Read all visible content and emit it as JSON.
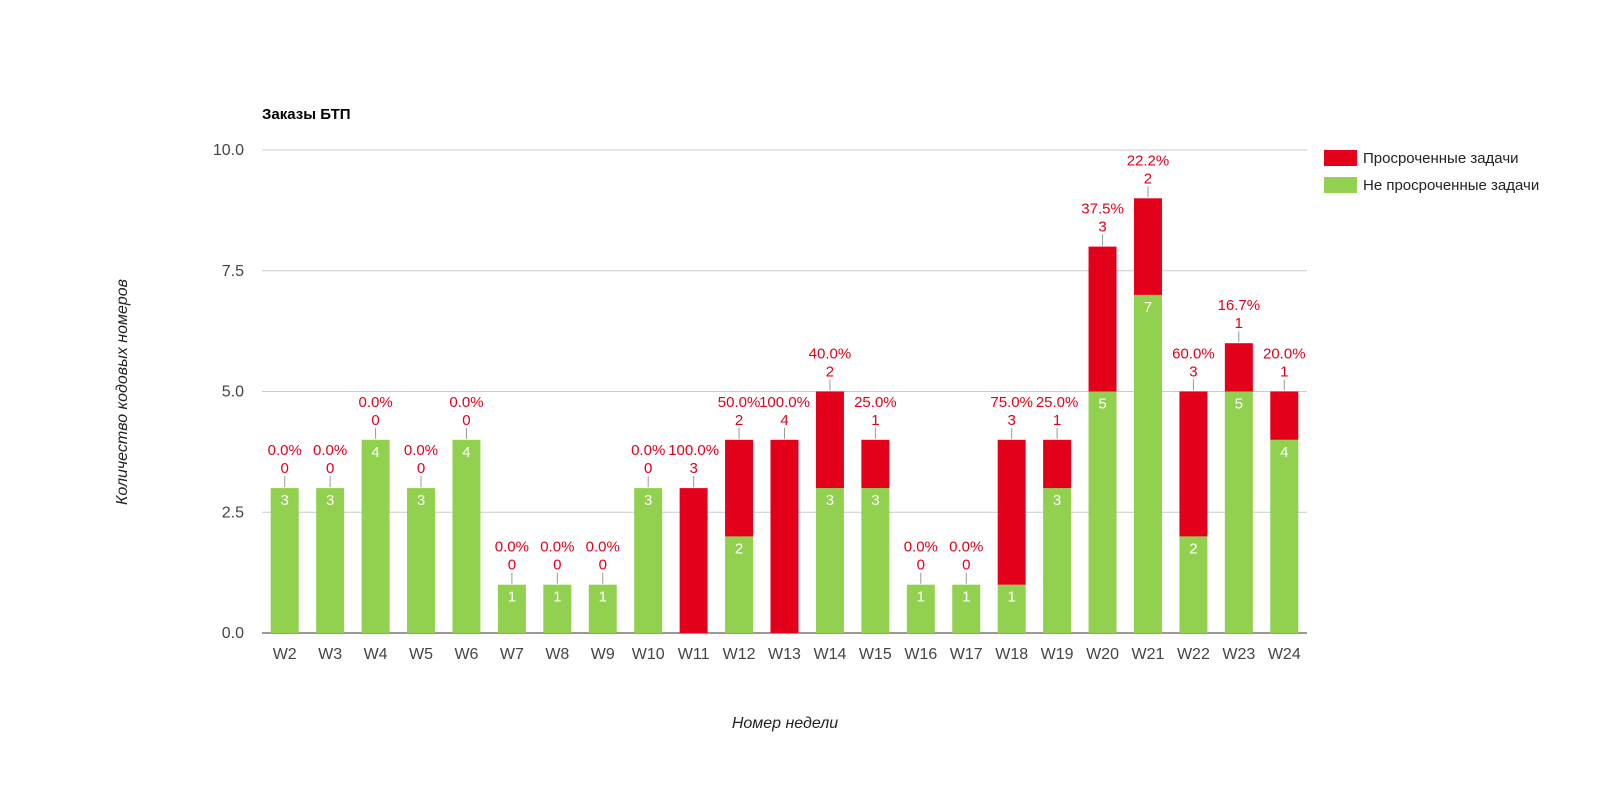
{
  "chart_data": {
    "type": "bar",
    "stacked": true,
    "title": "Заказы БТП",
    "xlabel": "Номер недели",
    "ylabel": "Количество кодовых номеров",
    "ylim": [
      0,
      10
    ],
    "yticks": [
      "0.0",
      "2.5",
      "5.0",
      "7.5",
      "10.0"
    ],
    "grid": true,
    "legend_position": "right",
    "categories": [
      "W2",
      "W3",
      "W4",
      "W5",
      "W6",
      "W7",
      "W8",
      "W9",
      "W10",
      "W11",
      "W12",
      "W13",
      "W14",
      "W15",
      "W16",
      "W17",
      "W18",
      "W19",
      "W20",
      "W21",
      "W22",
      "W23",
      "W24"
    ],
    "series": [
      {
        "name": "Не просроченные задачи",
        "color": "#92d050",
        "values": [
          3,
          3,
          4,
          3,
          4,
          1,
          1,
          1,
          3,
          0,
          2,
          0,
          3,
          3,
          1,
          1,
          1,
          3,
          5,
          7,
          2,
          5,
          4
        ]
      },
      {
        "name": "Просроченные задачи",
        "color": "#e3001b",
        "values": [
          0,
          0,
          0,
          0,
          0,
          0,
          0,
          0,
          0,
          3,
          2,
          4,
          2,
          1,
          0,
          0,
          3,
          1,
          3,
          2,
          3,
          1,
          1
        ]
      }
    ],
    "percent_labels": [
      "0.0%",
      "0.0%",
      "0.0%",
      "0.0%",
      "0.0%",
      "0.0%",
      "0.0%",
      "0.0%",
      "0.0%",
      "100.0%",
      "50.0%",
      "100.0%",
      "40.0%",
      "25.0%",
      "0.0%",
      "0.0%",
      "75.0%",
      "25.0%",
      "37.5%",
      "22.2%",
      "60.0%",
      "16.7%",
      "20.0%"
    ],
    "legend": [
      {
        "name": "Просроченные задачи",
        "color": "#e3001b"
      },
      {
        "name": "Не просроченные задачи",
        "color": "#92d050"
      }
    ]
  }
}
